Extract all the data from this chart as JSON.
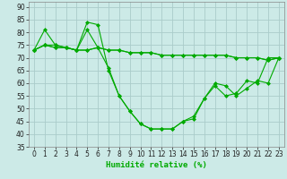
{
  "background_color": "#cceae7",
  "grid_color": "#aaccca",
  "line_color": "#00aa00",
  "xlabel": "Humidité relative (%)",
  "ylim": [
    35,
    92
  ],
  "xlim": [
    -0.5,
    23.5
  ],
  "yticks": [
    35,
    40,
    45,
    50,
    55,
    60,
    65,
    70,
    75,
    80,
    85,
    90
  ],
  "xticks": [
    0,
    1,
    2,
    3,
    4,
    5,
    6,
    7,
    8,
    9,
    10,
    11,
    12,
    13,
    14,
    15,
    16,
    17,
    18,
    19,
    20,
    21,
    22,
    23
  ],
  "series": [
    [
      73,
      81,
      75,
      74,
      73,
      84,
      83,
      65,
      55,
      49,
      44,
      42,
      42,
      42,
      45,
      47,
      54,
      60,
      59,
      55,
      58,
      61,
      60,
      70
    ],
    [
      73,
      75,
      75,
      74,
      73,
      81,
      74,
      66,
      55,
      49,
      44,
      42,
      42,
      42,
      45,
      46,
      54,
      59,
      55,
      56,
      61,
      60,
      70,
      70
    ],
    [
      73,
      75,
      74,
      74,
      73,
      73,
      74,
      73,
      73,
      72,
      72,
      72,
      71,
      71,
      71,
      71,
      71,
      71,
      71,
      70,
      70,
      70,
      69,
      70
    ],
    [
      73,
      75,
      74,
      74,
      73,
      73,
      74,
      73,
      73,
      72,
      72,
      72,
      71,
      71,
      71,
      71,
      71,
      71,
      71,
      70,
      70,
      70,
      69,
      70
    ]
  ]
}
